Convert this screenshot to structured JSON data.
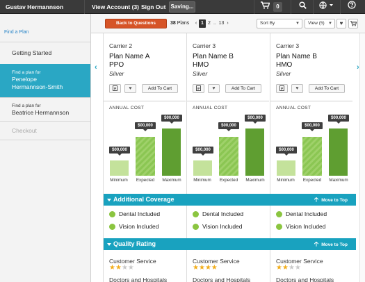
{
  "topbar": {
    "user": "Gustav Hermannson",
    "view_account": "View Account (3)",
    "sign_out": "Sign Out",
    "saving": "Saving...",
    "cart_count": "0"
  },
  "sidebar": {
    "find_plan_link": "Find a Plan",
    "items": [
      {
        "label": "Getting Started"
      },
      {
        "label_line1": "Find a plan for",
        "label_line2": "Penelope",
        "label_line3": "Hermannson-Smith"
      },
      {
        "label_line1": "Find a plan for",
        "label_line2": "Beatrice Hermannson"
      },
      {
        "label": "Checkout"
      }
    ]
  },
  "header": {
    "back_button": "Back to Questions",
    "plans_count": "38",
    "plans_label": "Plans",
    "pagination": {
      "prev": "‹",
      "current": "1",
      "next": "2",
      "ellipsis": "..",
      "last": "13",
      "next_arrow": "›"
    },
    "sort_by": "Sort By",
    "view": "View (5)"
  },
  "plans": [
    {
      "carrier": "Carrier 2",
      "name_line1": "Plan Name A",
      "name_line2": "PPO",
      "tier": "Silver",
      "add_to_cart": "Add To Cart",
      "annual_cost": "ANNUAL COST",
      "costs": {
        "minimum": "$00,000",
        "expected": "$00,000",
        "maximum": "$00,000"
      },
      "coverage": [
        "Dental Included",
        "Vision Included"
      ],
      "customer_service": "Customer Service",
      "cs_stars": 2,
      "doctors": "Doctors and Hospitals"
    },
    {
      "carrier": "Carrier 3",
      "name_line1": "Plan Name B",
      "name_line2": "HMO",
      "tier": "Silver",
      "add_to_cart": "Add To Cart",
      "annual_cost": "ANNUAL COST",
      "costs": {
        "minimum": "$00,000",
        "expected": "$00,000",
        "maximum": "$00,000"
      },
      "coverage": [
        "Dental Included",
        "Vision Included"
      ],
      "customer_service": "Customer Service",
      "cs_stars": 4,
      "doctors": "Doctors and Hospitals"
    },
    {
      "carrier": "Carrier 3",
      "name_line1": "Plan Name B",
      "name_line2": "HMO",
      "tier": "Silver",
      "add_to_cart": "Add To Cart",
      "annual_cost": "ANNUAL COST",
      "costs": {
        "minimum": "$00,000",
        "expected": "$00,000",
        "maximum": "$00,000"
      },
      "coverage": [
        "Dental Included",
        "Vision Included"
      ],
      "customer_service": "Customer Service",
      "cs_stars": 2,
      "doctors": "Doctors and Hospitals"
    }
  ],
  "bar_labels": {
    "minimum": "Minimum",
    "expected": "Expected",
    "maximum": "Maximum"
  },
  "sections": {
    "additional_coverage": "Additional Coverage",
    "quality_rating": "Quality Rating",
    "move_to_top": "Move to Top"
  },
  "colors": {
    "accent": "#19a2bf",
    "back_button": "#d65427",
    "bar_max": "#5f9e31",
    "bar_min": "#c4e29b",
    "star": "#f2ad1a"
  }
}
